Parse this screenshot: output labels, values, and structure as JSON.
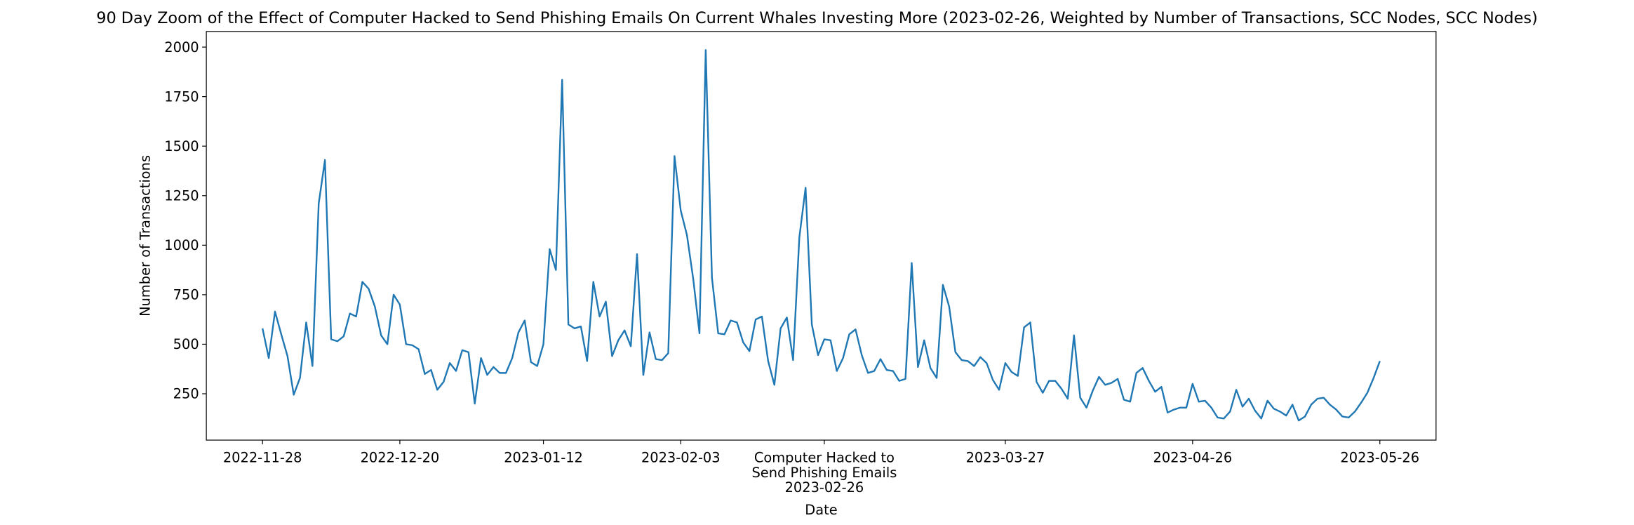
{
  "chart_data": {
    "type": "line",
    "title": "90 Day Zoom of the Effect of Computer Hacked to Send Phishing Emails On Current Whales Investing More (2023-02-26, Weighted by Number of Transactions, SCC Nodes, SCC Nodes)",
    "x_label": "Date",
    "y_label": "Number of Transactions",
    "x": [
      "2022-11-28",
      "2022-11-29",
      "2022-11-30",
      "2022-12-01",
      "2022-12-02",
      "2022-12-03",
      "2022-12-04",
      "2022-12-05",
      "2022-12-06",
      "2022-12-07",
      "2022-12-08",
      "2022-12-09",
      "2022-12-10",
      "2022-12-11",
      "2022-12-12",
      "2022-12-13",
      "2022-12-14",
      "2022-12-15",
      "2022-12-16",
      "2022-12-17",
      "2022-12-18",
      "2022-12-19",
      "2022-12-20",
      "2022-12-21",
      "2022-12-22",
      "2022-12-23",
      "2022-12-24",
      "2022-12-25",
      "2022-12-26",
      "2022-12-27",
      "2022-12-28",
      "2022-12-29",
      "2022-12-30",
      "2022-12-31",
      "2023-01-01",
      "2023-01-02",
      "2023-01-03",
      "2023-01-04",
      "2023-01-05",
      "2023-01-06",
      "2023-01-07",
      "2023-01-08",
      "2023-01-09",
      "2023-01-10",
      "2023-01-11",
      "2023-01-12",
      "2023-01-13",
      "2023-01-14",
      "2023-01-15",
      "2023-01-16",
      "2023-01-17",
      "2023-01-18",
      "2023-01-19",
      "2023-01-20",
      "2023-01-21",
      "2023-01-22",
      "2023-01-23",
      "2023-01-24",
      "2023-01-25",
      "2023-01-26",
      "2023-01-27",
      "2023-01-28",
      "2023-01-29",
      "2023-01-30",
      "2023-01-31",
      "2023-02-01",
      "2023-02-02",
      "2023-02-03",
      "2023-02-04",
      "2023-02-05",
      "2023-02-06",
      "2023-02-07",
      "2023-02-08",
      "2023-02-09",
      "2023-02-10",
      "2023-02-11",
      "2023-02-12",
      "2023-02-13",
      "2023-02-14",
      "2023-02-15",
      "2023-02-16",
      "2023-02-17",
      "2023-02-18",
      "2023-02-19",
      "2023-02-20",
      "2023-02-21",
      "2023-02-22",
      "2023-02-23",
      "2023-02-24",
      "2023-02-25",
      "2023-02-26",
      "2023-02-27",
      "2023-02-28",
      "2023-03-01",
      "2023-03-02",
      "2023-03-03",
      "2023-03-04",
      "2023-03-05",
      "2023-03-06",
      "2023-03-07",
      "2023-03-08",
      "2023-03-09",
      "2023-03-10",
      "2023-03-11",
      "2023-03-12",
      "2023-03-13",
      "2023-03-14",
      "2023-03-15",
      "2023-03-16",
      "2023-03-17",
      "2023-03-18",
      "2023-03-19",
      "2023-03-20",
      "2023-03-21",
      "2023-03-22",
      "2023-03-23",
      "2023-03-24",
      "2023-03-25",
      "2023-03-26",
      "2023-03-27",
      "2023-03-28",
      "2023-03-29",
      "2023-03-30",
      "2023-03-31",
      "2023-04-01",
      "2023-04-02",
      "2023-04-03",
      "2023-04-04",
      "2023-04-05",
      "2023-04-06",
      "2023-04-07",
      "2023-04-08",
      "2023-04-09",
      "2023-04-10",
      "2023-04-11",
      "2023-04-12",
      "2023-04-13",
      "2023-04-14",
      "2023-04-15",
      "2023-04-16",
      "2023-04-17",
      "2023-04-18",
      "2023-04-19",
      "2023-04-20",
      "2023-04-21",
      "2023-04-22",
      "2023-04-23",
      "2023-04-24",
      "2023-04-25",
      "2023-04-26",
      "2023-04-27",
      "2023-04-28",
      "2023-04-29",
      "2023-04-30",
      "2023-05-01",
      "2023-05-02",
      "2023-05-03",
      "2023-05-04",
      "2023-05-05",
      "2023-05-06",
      "2023-05-07",
      "2023-05-08",
      "2023-05-09",
      "2023-05-10",
      "2023-05-11",
      "2023-05-12",
      "2023-05-13",
      "2023-05-14",
      "2023-05-15",
      "2023-05-16",
      "2023-05-17",
      "2023-05-18",
      "2023-05-19",
      "2023-05-20",
      "2023-05-21",
      "2023-05-22",
      "2023-05-23",
      "2023-05-24",
      "2023-05-25",
      "2023-05-26"
    ],
    "series": [
      {
        "name": "Number of Transactions",
        "color": "#1f77b4",
        "values": [
          580,
          430,
          665,
          550,
          440,
          245,
          330,
          610,
          390,
          1210,
          1430,
          525,
          515,
          540,
          655,
          640,
          815,
          780,
          690,
          545,
          500,
          750,
          700,
          500,
          495,
          475,
          350,
          370,
          270,
          310,
          405,
          365,
          470,
          460,
          200,
          430,
          345,
          385,
          355,
          355,
          430,
          560,
          620,
          410,
          390,
          500,
          980,
          875,
          1835,
          600,
          580,
          590,
          415,
          815,
          640,
          715,
          440,
          520,
          570,
          490,
          955,
          345,
          560,
          425,
          420,
          455,
          1450,
          1175,
          1050,
          830,
          555,
          1985,
          835,
          555,
          550,
          620,
          610,
          510,
          465,
          625,
          640,
          415,
          295,
          580,
          635,
          420,
          1040,
          1290,
          600,
          445,
          525,
          520,
          365,
          430,
          550,
          575,
          445,
          355,
          365,
          425,
          370,
          365,
          315,
          325,
          910,
          385,
          520,
          380,
          330,
          800,
          690,
          460,
          420,
          415,
          390,
          435,
          405,
          320,
          270,
          405,
          360,
          340,
          585,
          610,
          310,
          255,
          315,
          315,
          275,
          225,
          545,
          230,
          180,
          265,
          335,
          295,
          305,
          325,
          220,
          210,
          355,
          380,
          315,
          260,
          285,
          155,
          170,
          180,
          180,
          300,
          210,
          215,
          180,
          130,
          125,
          160,
          270,
          185,
          225,
          165,
          125,
          215,
          175,
          160,
          140,
          195,
          115,
          135,
          195,
          225,
          230,
          195,
          170,
          135,
          130,
          160,
          205,
          255,
          330,
          415
        ]
      }
    ],
    "xlim": [
      "2022-11-19",
      "2023-06-04"
    ],
    "xticks": [
      "2022-11-28",
      "2022-12-20",
      "2023-01-12",
      "2023-02-03",
      {
        "value": "2023-02-26",
        "label": "Computer Hacked to\nSend Phishing Emails\n2023-02-26"
      },
      "2023-03-27",
      "2023-04-26",
      "2023-05-26"
    ],
    "ylim": [
      16,
      2079
    ],
    "yticks": [
      250,
      500,
      750,
      1000,
      1250,
      1500,
      1750,
      2000
    ]
  }
}
